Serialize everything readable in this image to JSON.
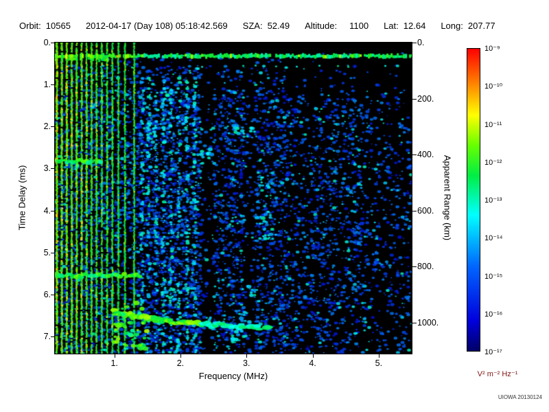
{
  "header": {
    "orbit_label": "Orbit:",
    "orbit_value": "10565",
    "datetime": "2012-04-17 (Day 108) 05:18:42.569",
    "sza_label": "SZA:",
    "sza_value": "52.49",
    "altitude_label": "Altitude:",
    "altitude_value": "1100",
    "lat_label": "Lat:",
    "lat_value": "12.64",
    "long_label": "Long:",
    "long_value": "207.77"
  },
  "watermark": "UIOWA 20130124",
  "chart_data": {
    "type": "heatmap",
    "title": "",
    "xlabel": "Frequency (MHz)",
    "ylabel": "Time Delay (ms)",
    "ylabel_right": "Apparent Range (km)",
    "x_range_mhz": [
      0.1,
      5.5
    ],
    "y_range_ms": [
      0,
      7.41
    ],
    "grid": false,
    "x_ticks": [
      {
        "v": 1,
        "label": "1."
      },
      {
        "v": 2,
        "label": "2."
      },
      {
        "v": 3,
        "label": "3."
      },
      {
        "v": 4,
        "label": "4."
      },
      {
        "v": 5,
        "label": "5."
      }
    ],
    "y_ticks": [
      {
        "v": 0,
        "label": "0."
      },
      {
        "v": 1,
        "label": "1."
      },
      {
        "v": 2,
        "label": "2."
      },
      {
        "v": 3,
        "label": "3."
      },
      {
        "v": 4,
        "label": "4."
      },
      {
        "v": 5,
        "label": "5."
      },
      {
        "v": 6,
        "label": "6."
      },
      {
        "v": 7,
        "label": "7."
      }
    ],
    "right_ticks": [
      {
        "v": 0,
        "label": "0."
      },
      {
        "v": 200,
        "label": "200."
      },
      {
        "v": 400,
        "label": "400."
      },
      {
        "v": 600,
        "label": "600."
      },
      {
        "v": 800,
        "label": "800."
      },
      {
        "v": 1000,
        "label": "1000."
      }
    ],
    "colormap": [
      [
        0.0,
        "#000066"
      ],
      [
        0.1,
        "#0000dd"
      ],
      [
        0.28,
        "#0066ff"
      ],
      [
        0.45,
        "#00ffff"
      ],
      [
        0.58,
        "#00ee44"
      ],
      [
        0.68,
        "#66ff00"
      ],
      [
        0.78,
        "#ffff00"
      ],
      [
        0.88,
        "#ff8800"
      ],
      [
        1.0,
        "#ff0000"
      ]
    ],
    "colorbar": {
      "units": "V² m⁻² Hz⁻¹",
      "tick_labels": [
        "10⁻⁹",
        "10⁻¹⁰",
        "10⁻¹¹",
        "10⁻¹²",
        "10⁻¹³",
        "10⁻¹⁴",
        "10⁻¹⁵",
        "10⁻¹⁶",
        "10⁻¹⁷"
      ],
      "max": "1e-9",
      "min": "1e-17"
    },
    "features": {
      "surface_band": {
        "delay_ms": 0.32
      },
      "plasma_lines": [
        [
          0.13,
          1.0
        ],
        [
          0.205,
          0.95
        ],
        [
          0.28,
          0.9
        ],
        [
          0.355,
          0.85
        ],
        [
          0.43,
          0.8
        ],
        [
          0.505,
          0.75
        ],
        [
          0.58,
          0.7
        ],
        [
          0.655,
          0.65
        ],
        [
          0.73,
          0.6
        ],
        [
          0.81,
          0.55
        ],
        [
          0.89,
          0.5
        ],
        [
          0.97,
          0.45
        ],
        [
          1.06,
          0.42
        ],
        [
          1.16,
          0.4
        ],
        [
          1.3,
          0.38
        ]
      ],
      "streak_columns": [
        1.42,
        1.52,
        1.63,
        1.74,
        1.86,
        1.98,
        2.1,
        2.22
      ],
      "echo_trace": [
        [
          1.0,
          6.42
        ],
        [
          1.3,
          6.52
        ],
        [
          1.7,
          6.62
        ],
        [
          2.1,
          6.68
        ],
        [
          2.5,
          6.72
        ],
        [
          2.9,
          6.76
        ],
        [
          3.35,
          6.8
        ]
      ],
      "h_segments": [
        {
          "delay_ms": 2.82,
          "f": [
            0.1,
            0.8
          ]
        },
        {
          "delay_ms": 5.55,
          "f": [
            0.1,
            1.4
          ]
        }
      ],
      "noise_bands": [
        {
          "f": [
            0.1,
            1.35
          ],
          "p": 0.3
        },
        {
          "f": [
            1.35,
            2.3
          ],
          "p": 0.38
        },
        {
          "f": [
            2.3,
            2.5
          ],
          "p": 0.07
        },
        {
          "f": [
            2.5,
            2.95
          ],
          "p": 0.3
        },
        {
          "f": [
            2.95,
            3.12
          ],
          "p": 0.09
        },
        {
          "f": [
            3.12,
            3.6
          ],
          "p": 0.27
        },
        {
          "f": [
            3.6,
            4.0
          ],
          "p": 0.16
        },
        {
          "f": [
            4.0,
            4.7
          ],
          "p": 0.2
        },
        {
          "f": [
            4.7,
            5.5
          ],
          "p": 0.13
        }
      ]
    }
  }
}
